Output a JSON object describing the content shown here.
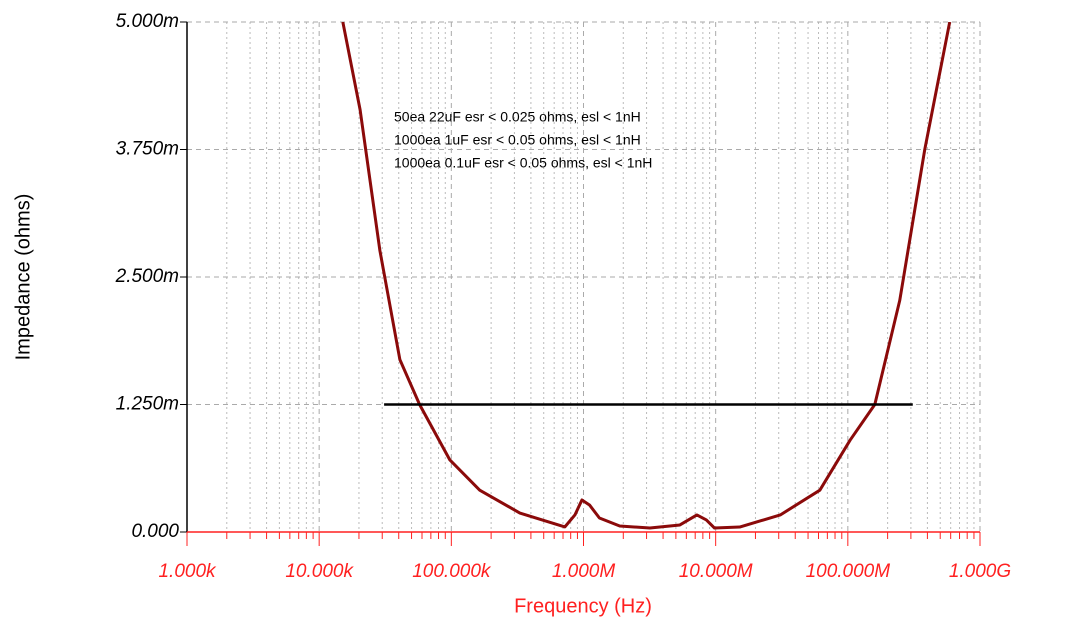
{
  "chart_data": {
    "type": "line",
    "x_label": "Frequency (Hz)",
    "y_label": "Impedance (ohms)",
    "annotations": [
      "50ea 22uF esr < 0.025 ohms, esl < 1nH",
      "1000ea 1uF esr < 0.05 ohms, esl < 1nH",
      "1000ea 0.1uF esr < 0.05 ohms, esl < 1nH"
    ],
    "x_log": true,
    "grid": true,
    "xlim": [
      1000,
      1000000000
    ],
    "xticks": [
      {
        "value": 1000,
        "label": "1.000k"
      },
      {
        "value": 10000,
        "label": "10.000k"
      },
      {
        "value": 100000,
        "label": "100.000k"
      },
      {
        "value": 1000000,
        "label": "1.000M"
      },
      {
        "value": 10000000,
        "label": "10.000M"
      },
      {
        "value": 100000000,
        "label": "100.000M"
      },
      {
        "value": 1000000000,
        "label": "1.000G"
      }
    ],
    "ylim": [
      0,
      0.005
    ],
    "yticks": [
      {
        "value": 0,
        "label": "0.000"
      },
      {
        "value": 0.00125,
        "label": "1.250m"
      },
      {
        "value": 0.0025,
        "label": "2.500m"
      },
      {
        "value": 0.00375,
        "label": "3.750m"
      },
      {
        "value": 0.005,
        "label": "5.000m"
      }
    ],
    "series": [
      {
        "color": "#8b0a0a",
        "x": [
          15100,
          20400,
          28800,
          40800,
          57500,
          97500,
          164000,
          330000,
          723000,
          861000,
          973000,
          1110000,
          1320000,
          1880000,
          3180000,
          5360000,
          7210000,
          8500000,
          9800000,
          15200000,
          30800000,
          61400000,
          104000000,
          160000000,
          247000000,
          382000000,
          590000000
        ],
        "values": [
          0.005,
          0.00414,
          0.00276,
          0.00169,
          0.00125,
          0.000706,
          0.00041,
          0.000186,
          5e-05,
          0.000167,
          0.000314,
          0.000265,
          0.000137,
          5.9e-05,
          3.9e-05,
          6.9e-05,
          0.000167,
          0.000118,
          3.9e-05,
          4.9e-05,
          0.000167,
          0.00041,
          0.0009,
          0.00125,
          0.00227,
          0.00375,
          0.005
        ]
      },
      {
        "color": "#000000",
        "x": [
          31000,
          310000000
        ],
        "values": [
          0.00125,
          0.00125
        ]
      }
    ]
  }
}
